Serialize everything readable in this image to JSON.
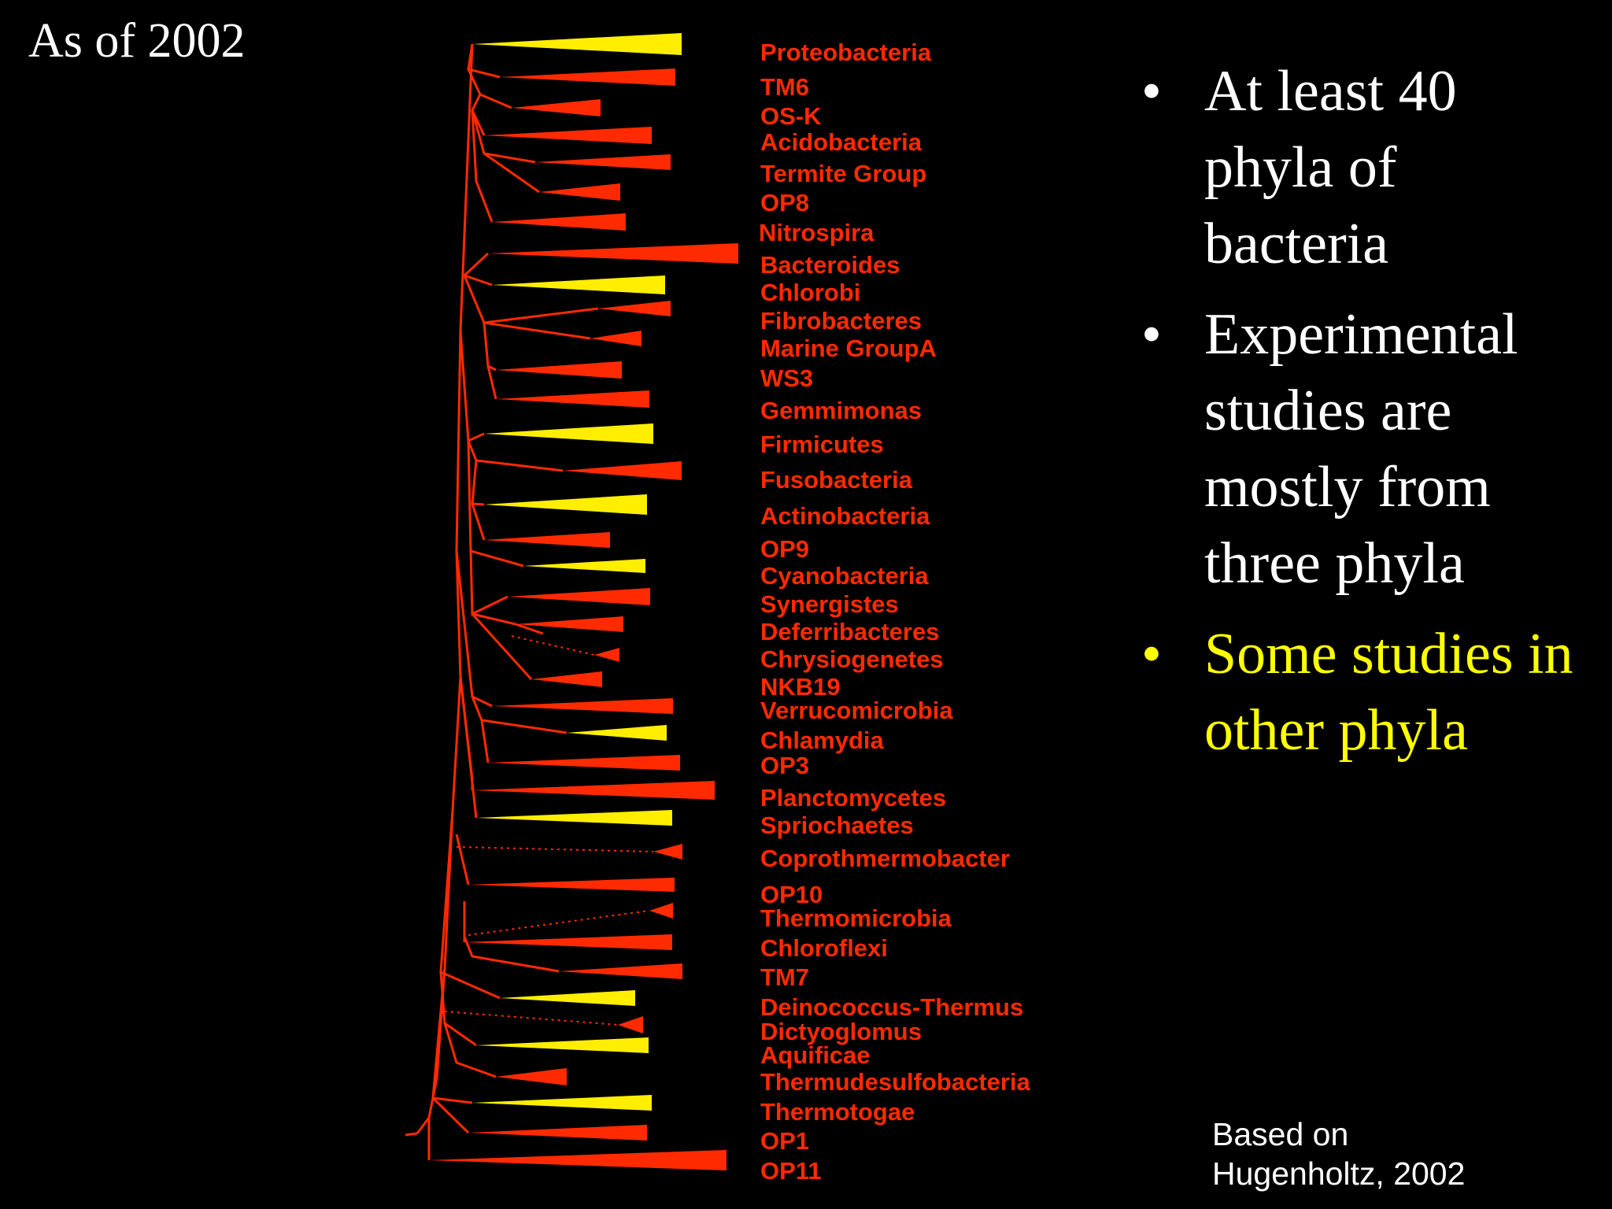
{
  "corner_title": "As of 2002",
  "colors": {
    "branch": "#ff2a00",
    "red_wedge": "#ff2a00",
    "yellow_wedge": "#ffee00",
    "red_label": "#ff2a00",
    "bullet_white": "#ffffff",
    "bullet_yellow": "#ffff00"
  },
  "phyla": [
    {
      "name": "Proteobacteria",
      "color": "yellow"
    },
    {
      "name": "TM6",
      "color": "red"
    },
    {
      "name": "OS-K",
      "color": "red"
    },
    {
      "name": "Acidobacteria",
      "color": "red"
    },
    {
      "name": "Termite Group",
      "color": "red"
    },
    {
      "name": "OP8",
      "color": "red"
    },
    {
      "name": "Nitrospira",
      "color": "red"
    },
    {
      "name": "Bacteroides",
      "color": "red"
    },
    {
      "name": "Chlorobi",
      "color": "yellow"
    },
    {
      "name": "Fibrobacteres",
      "color": "red"
    },
    {
      "name": "Marine GroupA",
      "color": "red"
    },
    {
      "name": "WS3",
      "color": "red"
    },
    {
      "name": "Gemmimonas",
      "color": "red"
    },
    {
      "name": "Firmicutes",
      "color": "yellow"
    },
    {
      "name": "Fusobacteria",
      "color": "red"
    },
    {
      "name": "Actinobacteria",
      "color": "yellow"
    },
    {
      "name": "OP9",
      "color": "red"
    },
    {
      "name": "Cyanobacteria",
      "color": "yellow"
    },
    {
      "name": "Synergistes",
      "color": "red"
    },
    {
      "name": "Deferribacteres",
      "color": "red"
    },
    {
      "name": "Chrysiogenetes",
      "color": "red"
    },
    {
      "name": "NKB19",
      "color": "red"
    },
    {
      "name": "Verrucomicrobia",
      "color": "red"
    },
    {
      "name": "Chlamydia",
      "color": "yellow"
    },
    {
      "name": "OP3",
      "color": "red"
    },
    {
      "name": "Planctomycetes",
      "color": "red"
    },
    {
      "name": "Spriochaetes",
      "color": "yellow"
    },
    {
      "name": "Coprothmermobacter",
      "color": "red"
    },
    {
      "name": "OP10",
      "color": "red"
    },
    {
      "name": "Thermomicrobia",
      "color": "red"
    },
    {
      "name": "Chloroflexi",
      "color": "red"
    },
    {
      "name": "TM7",
      "color": "red"
    },
    {
      "name": "Deinococcus-Thermus",
      "color": "yellow"
    },
    {
      "name": "Dictyoglomus",
      "color": "red"
    },
    {
      "name": "Aquificae",
      "color": "yellow"
    },
    {
      "name": "Thermudesulfobacteria",
      "color": "red"
    },
    {
      "name": "Thermotogae",
      "color": "yellow"
    },
    {
      "name": "OP1",
      "color": "red"
    },
    {
      "name": "OP11",
      "color": "red"
    }
  ],
  "bullets": [
    {
      "text": "At least 40 phyla of bacteria",
      "highlight": false
    },
    {
      "text": "Experimental studies are mostly from three phyla",
      "highlight": false
    },
    {
      "text": "Some studies in other phyla",
      "highlight": true
    }
  ],
  "bullet_symbol": "•",
  "credit": {
    "line1": "Based on",
    "line2": "Hugenholtz, 2002"
  }
}
